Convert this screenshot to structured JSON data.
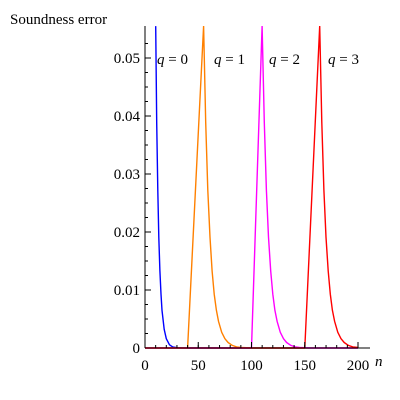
{
  "chart_data": {
    "type": "line",
    "title": "",
    "xlabel": "n",
    "ylabel": "Soundness error",
    "xlim": [
      0,
      200
    ],
    "ylim": [
      0,
      0.05
    ],
    "x_ticks": [
      {
        "value": 0,
        "label": "0"
      },
      {
        "value": 50,
        "label": "50"
      },
      {
        "value": 100,
        "label": "100"
      },
      {
        "value": 150,
        "label": "150"
      },
      {
        "value": 200,
        "label": "200"
      }
    ],
    "y_ticks": [
      {
        "value": 0,
        "label": "0"
      },
      {
        "value": 0.01,
        "label": "0.01"
      },
      {
        "value": 0.02,
        "label": "0.02"
      },
      {
        "value": 0.03,
        "label": "0.03"
      },
      {
        "value": 0.04,
        "label": "0.04"
      },
      {
        "value": 0.05,
        "label": "0.05"
      }
    ],
    "x_minor_step": 10,
    "y_minor_step": 0.0025,
    "grid": false,
    "series": [
      {
        "name": "q = 0",
        "label_var": "q",
        "label_eq": "= 0",
        "color": "#0000ff",
        "x": [
          10,
          11,
          12,
          13,
          14,
          15,
          16,
          18,
          20,
          23,
          26,
          30,
          35,
          40,
          50,
          70,
          100,
          150,
          200
        ],
        "y": [
          0.0555,
          0.0389,
          0.0272,
          0.0191,
          0.0133,
          0.0093,
          0.0065,
          0.0032,
          0.0016,
          0.00055,
          0.00019,
          5e-05,
          1e-05,
          0,
          0,
          0,
          0,
          0,
          0
        ]
      },
      {
        "name": "q = 1",
        "label_var": "q",
        "label_eq": "= 1",
        "color": "#ff8000",
        "x": [
          0,
          20,
          40,
          55,
          57,
          59,
          61,
          63,
          65,
          67,
          69,
          72,
          75,
          78,
          82,
          86,
          90,
          100,
          150,
          200
        ],
        "y": [
          0,
          0,
          0,
          0.0555,
          0.0389,
          0.0272,
          0.0191,
          0.0133,
          0.0093,
          0.0065,
          0.0046,
          0.0027,
          0.0016,
          0.00095,
          0.00045,
          0.00019,
          8e-05,
          0,
          0,
          0
        ]
      },
      {
        "name": "q = 2",
        "label_var": "q",
        "label_eq": "= 2",
        "color": "#ff00ff",
        "x": [
          0,
          50,
          100,
          110,
          112,
          114,
          116,
          118,
          120,
          122,
          124,
          127,
          130,
          133,
          137,
          141,
          145,
          155,
          200
        ],
        "y": [
          0,
          0,
          0,
          0.0555,
          0.0389,
          0.0272,
          0.0191,
          0.0133,
          0.0093,
          0.0065,
          0.0046,
          0.0027,
          0.0016,
          0.00095,
          0.00045,
          0.00019,
          8e-05,
          0,
          0
        ]
      },
      {
        "name": "q = 3",
        "label_var": "q",
        "label_eq": "= 3",
        "color": "#ff0000",
        "x": [
          0,
          50,
          100,
          150,
          164,
          166,
          168,
          170,
          172,
          174,
          176,
          178,
          181,
          184,
          187,
          191,
          195,
          200
        ],
        "y": [
          0,
          0,
          0,
          0,
          0.0555,
          0.0389,
          0.0272,
          0.0191,
          0.0133,
          0.0093,
          0.0065,
          0.0046,
          0.0027,
          0.0016,
          0.00095,
          0.00045,
          0.00019,
          8e-05
        ]
      }
    ]
  }
}
